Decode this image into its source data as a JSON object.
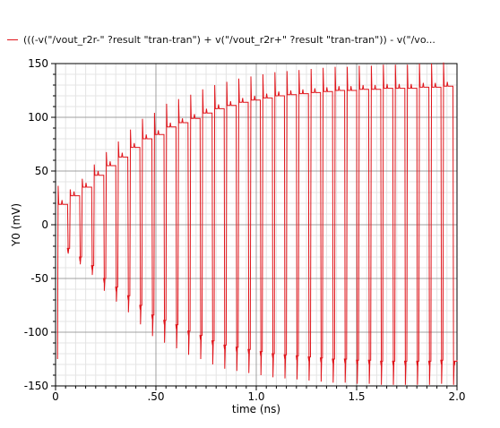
{
  "chart_data": {
    "type": "line",
    "title": "",
    "xlabel": "time (ns)",
    "ylabel": "Y0 (mV)",
    "xlim": [
      0,
      2.0
    ],
    "ylim": [
      -150,
      150
    ],
    "x_ticks": [
      "0",
      ".50",
      "1.0",
      "1.5",
      "2.0"
    ],
    "y_ticks": [
      "150",
      "100",
      "50",
      "0",
      "-50",
      "-100",
      "-150"
    ],
    "grid": true,
    "legend_position": "top-left",
    "series": [
      {
        "name": "(((-v(\"/vout_r2r-\" ?result \"tran-tran\") + v(\"/vout_r2r+\" ?result \"tran-tran\")) - v(\"/vo...",
        "color": "#e0141a",
        "x": [
          0.01,
          0.06,
          0.07,
          0.12,
          0.13,
          0.18,
          0.19,
          0.24,
          0.25,
          0.3,
          0.31,
          0.36,
          0.37,
          0.42,
          0.43,
          0.48,
          0.49,
          0.54,
          0.55,
          0.6,
          0.61,
          0.66,
          0.67,
          0.72,
          0.73,
          0.78,
          0.79,
          0.84,
          0.85,
          0.9,
          0.91,
          0.96,
          0.97,
          1.02,
          1.03,
          1.08,
          1.09,
          1.14,
          1.15,
          1.2,
          1.21,
          1.26,
          1.27,
          1.32,
          1.33,
          1.38,
          1.39,
          1.44,
          1.45,
          1.5,
          1.51,
          1.56,
          1.57,
          1.62,
          1.63,
          1.68,
          1.69,
          1.74,
          1.75,
          1.8,
          1.81,
          1.86,
          1.87,
          1.92,
          1.93,
          1.98,
          2.0
        ],
        "values": [
          19,
          -22,
          27,
          -30,
          35,
          -38,
          46,
          -50,
          55,
          -58,
          63,
          -66,
          72,
          -75,
          80,
          -84,
          84,
          -89,
          91,
          -93,
          95,
          -99,
          99,
          -103,
          104,
          -108,
          108,
          -112,
          111,
          -114,
          114,
          -116,
          116,
          -118,
          118,
          -120,
          120,
          -121,
          121,
          -122,
          122,
          -123,
          123,
          -124,
          124,
          -125,
          125,
          -125,
          125,
          -126,
          126,
          -126,
          126,
          -127,
          127,
          -127,
          127,
          -127,
          127,
          -127,
          128,
          -127,
          128,
          -126,
          129,
          -127,
          -126
        ]
      }
    ]
  }
}
